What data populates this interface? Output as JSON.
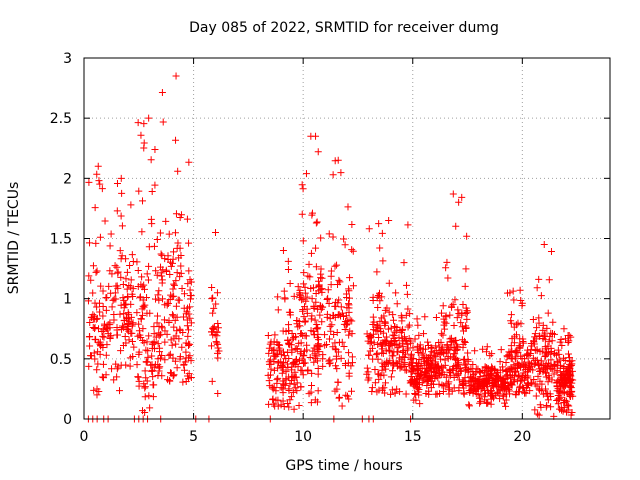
{
  "chart_data": {
    "type": "scatter",
    "title": "Day 085 of 2022, SRMTID for receiver dumg",
    "xlabel": "GPS time / hours",
    "ylabel": "SRMTID / TECUs",
    "xlim": [
      0,
      24
    ],
    "ylim": [
      0,
      3
    ],
    "xticks": [
      0,
      5,
      10,
      15,
      20
    ],
    "yticks": [
      0,
      0.5,
      1,
      1.5,
      2,
      2.5,
      3
    ],
    "xtick_labels": [
      "0",
      "5",
      "10",
      "15",
      "20"
    ],
    "ytick_labels": [
      "0",
      "0.5",
      "1",
      "1.5",
      "2",
      "2.5",
      "3"
    ],
    "grid": true,
    "marker": "+",
    "color": "#ff0000",
    "series": [
      {
        "name": "dumg",
        "clusters": [
          {
            "x": [
              0.2,
              1.1
            ],
            "ymin": 0.2,
            "ymax": 2.1,
            "peak": 0.7,
            "n": 80
          },
          {
            "x": [
              1.1,
              2.3
            ],
            "ymin": 0.2,
            "ymax": 2.0,
            "peak": 0.85,
            "n": 110
          },
          {
            "x": [
              2.4,
              3.5
            ],
            "ymin": 0.05,
            "ymax": 2.5,
            "peak": 0.65,
            "n": 120
          },
          {
            "x": [
              3.5,
              4.9
            ],
            "ymin": 0.3,
            "ymax": 2.85,
            "peak": 0.85,
            "n": 140
          },
          {
            "x": [
              5.8,
              6.2
            ],
            "ymin": 0.2,
            "ymax": 1.55,
            "peak": 0.8,
            "n": 30
          },
          {
            "x": [
              8.4,
              9.8
            ],
            "ymin": 0.05,
            "ymax": 1.4,
            "peak": 0.45,
            "n": 150
          },
          {
            "x": [
              9.8,
              10.9
            ],
            "ymin": 0.1,
            "ymax": 2.35,
            "peak": 0.75,
            "n": 140
          },
          {
            "x": [
              10.9,
              12.3
            ],
            "ymin": 0.1,
            "ymax": 2.15,
            "peak": 0.7,
            "n": 110
          },
          {
            "x": [
              12.9,
              14.9
            ],
            "ymin": 0.2,
            "ymax": 1.65,
            "peak": 0.6,
            "n": 200
          },
          {
            "x": [
              14.9,
              16.2
            ],
            "ymin": 0.1,
            "ymax": 0.85,
            "peak": 0.4,
            "n": 170
          },
          {
            "x": [
              16.2,
              17.5
            ],
            "ymin": 0.2,
            "ymax": 1.87,
            "peak": 0.55,
            "n": 160
          },
          {
            "x": [
              17.5,
              19.3
            ],
            "ymin": 0.1,
            "ymax": 0.6,
            "peak": 0.3,
            "n": 210
          },
          {
            "x": [
              19.3,
              20.5
            ],
            "ymin": 0.2,
            "ymax": 1.07,
            "peak": 0.42,
            "n": 140
          },
          {
            "x": [
              20.5,
              21.5
            ],
            "ymin": 0.02,
            "ymax": 1.45,
            "peak": 0.45,
            "n": 120
          },
          {
            "x": [
              21.5,
              22.3
            ],
            "ymin": 0.02,
            "ymax": 0.75,
            "peak": 0.3,
            "n": 140
          }
        ],
        "zero_points_x": [
          0.2,
          0.4,
          0.6,
          0.9,
          1.1,
          2.3,
          2.5,
          2.7,
          2.9,
          3.5,
          5.1,
          5.7,
          8.5,
          11.4,
          12.7,
          13.0,
          13.2,
          14.9
        ]
      }
    ]
  }
}
